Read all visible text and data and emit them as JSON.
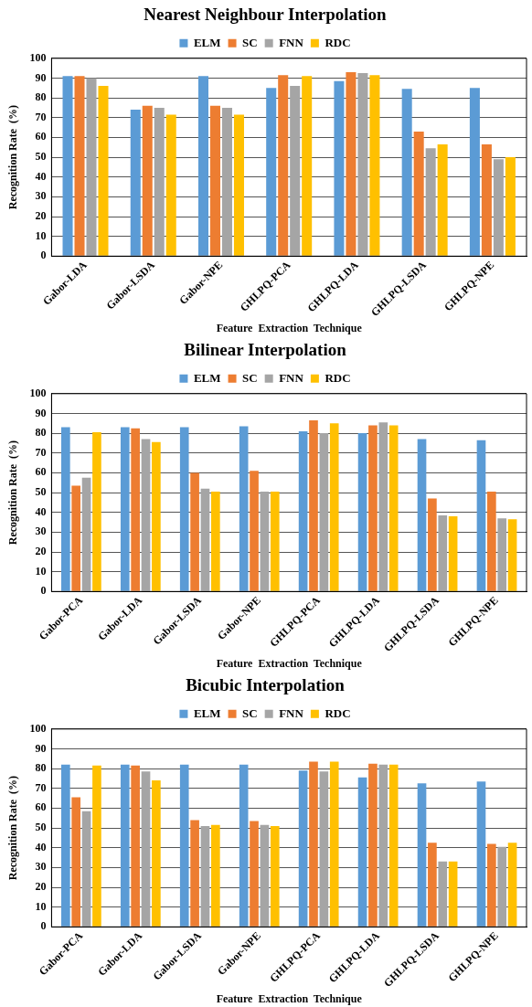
{
  "chart_data": [
    {
      "type": "bar",
      "title": "Nearest Neighbour Interpolation",
      "xlabel": "Feature  Extraction  Technique",
      "ylabel": "Recognition Rate  (%)",
      "categories": [
        "Gabor-LDA",
        "Gabor-LSDA",
        "Gabor-NPE",
        "GHLPQ-PCA",
        "GHLPQ-LDA",
        "GHLPQ-LSDA",
        "GHLPQ-NPE"
      ],
      "series": [
        {
          "name": "ELM",
          "color": "#5b9bd5",
          "values": [
            91,
            74,
            91,
            85,
            88.5,
            84.5,
            85
          ]
        },
        {
          "name": "SC",
          "color": "#ed7d31",
          "values": [
            91,
            76,
            76,
            91.5,
            93,
            63,
            56.5
          ]
        },
        {
          "name": "FNN",
          "color": "#a5a5a5",
          "values": [
            90,
            75,
            75,
            86,
            92.5,
            54.5,
            49
          ]
        },
        {
          "name": "RDC",
          "color": "#ffc000",
          "values": [
            86,
            71.5,
            71.5,
            91,
            91.5,
            56.5,
            50
          ]
        }
      ],
      "ylim": [
        0,
        100
      ],
      "yticks": [
        0,
        10,
        20,
        30,
        40,
        50,
        60,
        70,
        80,
        90,
        100
      ],
      "grid": "y",
      "legend": "top"
    },
    {
      "type": "bar",
      "title": "Bilinear Interpolation",
      "xlabel": "Feature  Extraction  Technique",
      "ylabel": "Recognition Rate  (%)",
      "categories": [
        "Gabor-PCA",
        "Gabor-LDA",
        "Gabor-LSDA",
        "Gabor-NPE",
        "GHLPQ-PCA",
        "GHLPQ-LDA",
        "GHLPQ-LSDA",
        "GHLPQ-NPE"
      ],
      "series": [
        {
          "name": "ELM",
          "color": "#5b9bd5",
          "values": [
            83,
            83,
            83,
            83.5,
            81,
            80,
            77,
            76.5
          ]
        },
        {
          "name": "SC",
          "color": "#ed7d31",
          "values": [
            53.5,
            82.5,
            60,
            61,
            86.5,
            84,
            47,
            50.5
          ]
        },
        {
          "name": "FNN",
          "color": "#a5a5a5",
          "values": [
            57.5,
            77,
            52,
            50.5,
            80,
            85.5,
            38.5,
            37
          ]
        },
        {
          "name": "RDC",
          "color": "#ffc000",
          "values": [
            80.5,
            75.5,
            50.5,
            50.5,
            85,
            84,
            38,
            36.5
          ]
        }
      ],
      "ylim": [
        0,
        100
      ],
      "yticks": [
        0,
        10,
        20,
        30,
        40,
        50,
        60,
        70,
        80,
        90,
        100
      ],
      "grid": "y",
      "legend": "top"
    },
    {
      "type": "bar",
      "title": "Bicubic Interpolation",
      "xlabel": "Feature  Extraction  Technique",
      "ylabel": "Recognition Rate  (%)",
      "categories": [
        "Gabor-PCA",
        "Gabor-LDA",
        "Gabor-LSDA",
        "Gabor-NPE",
        "GHLPQ-PCA",
        "GHLPQ-LDA",
        "GHLPQ-LSDA",
        "GHLPQ-NPE"
      ],
      "series": [
        {
          "name": "ELM",
          "color": "#5b9bd5",
          "values": [
            82,
            82,
            82,
            82,
            79,
            75.5,
            72.5,
            73.5
          ]
        },
        {
          "name": "SC",
          "color": "#ed7d31",
          "values": [
            65.5,
            81.5,
            54,
            53.5,
            83.5,
            82.5,
            42.5,
            42
          ]
        },
        {
          "name": "FNN",
          "color": "#a5a5a5",
          "values": [
            58.5,
            78.5,
            51,
            51.5,
            78.5,
            82,
            33,
            40.5
          ]
        },
        {
          "name": "RDC",
          "color": "#ffc000",
          "values": [
            81.5,
            74,
            51.5,
            51,
            83.5,
            82,
            33,
            42.5
          ]
        }
      ],
      "ylim": [
        0,
        100
      ],
      "yticks": [
        0,
        10,
        20,
        30,
        40,
        50,
        60,
        70,
        80,
        90,
        100
      ],
      "grid": "y",
      "legend": "top"
    }
  ]
}
